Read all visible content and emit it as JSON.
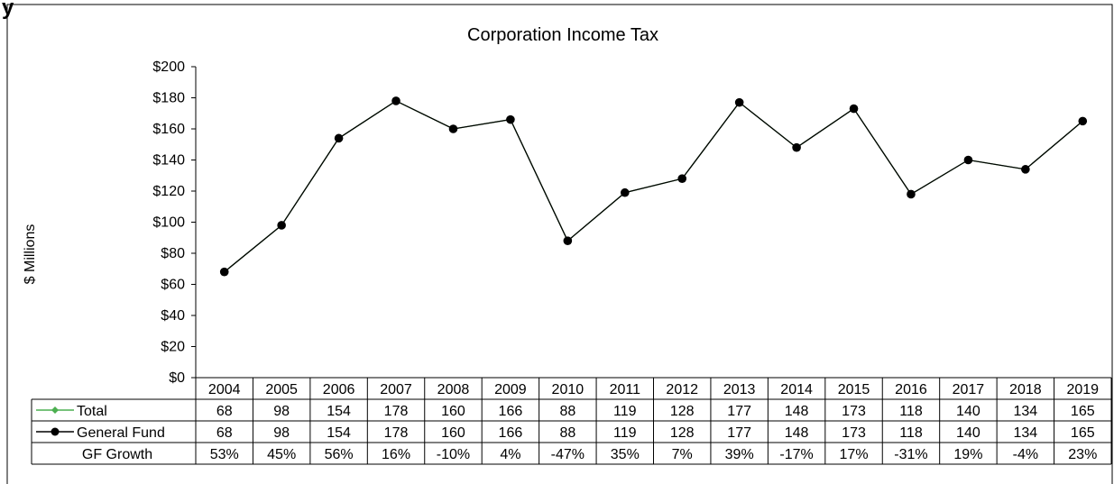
{
  "page": {
    "header_fragment": "y"
  },
  "chart_data": {
    "type": "line",
    "title": "Corporation Income Tax",
    "ylabel": "$ Millions",
    "xlabel": "",
    "ylim": [
      0,
      200
    ],
    "y_ticks": [
      "$0",
      "$20",
      "$40",
      "$60",
      "$80",
      "$100",
      "$120",
      "$140",
      "$160",
      "$180",
      "$200"
    ],
    "categories": [
      "2004",
      "2005",
      "2006",
      "2007",
      "2008",
      "2009",
      "2010",
      "2011",
      "2012",
      "2013",
      "2014",
      "2015",
      "2016",
      "2017",
      "2018",
      "2019"
    ],
    "grid": false,
    "legend": "data-table",
    "series": [
      {
        "name": "Total",
        "color": "#4caf50",
        "marker": "diamond",
        "values": [
          68,
          98,
          154,
          178,
          160,
          166,
          88,
          119,
          128,
          177,
          148,
          173,
          118,
          140,
          134,
          165
        ]
      },
      {
        "name": "General Fund",
        "color": "#000000",
        "marker": "circle",
        "values": [
          68,
          98,
          154,
          178,
          160,
          166,
          88,
          119,
          128,
          177,
          148,
          173,
          118,
          140,
          134,
          165
        ]
      }
    ],
    "table_rows": [
      {
        "label": "Total",
        "legend_series": 0,
        "cells": [
          "68",
          "98",
          "154",
          "178",
          "160",
          "166",
          "88",
          "119",
          "128",
          "177",
          "148",
          "173",
          "118",
          "140",
          "134",
          "165"
        ]
      },
      {
        "label": "General Fund",
        "legend_series": 1,
        "cells": [
          "68",
          "98",
          "154",
          "178",
          "160",
          "166",
          "88",
          "119",
          "128",
          "177",
          "148",
          "173",
          "118",
          "140",
          "134",
          "165"
        ]
      },
      {
        "label": "GF Growth",
        "legend_series": null,
        "cells": [
          "53%",
          "45%",
          "56%",
          "16%",
          "-10%",
          "4%",
          "-47%",
          "35%",
          "7%",
          "39%",
          "-17%",
          "17%",
          "-31%",
          "19%",
          "-4%",
          "23%"
        ]
      }
    ]
  }
}
